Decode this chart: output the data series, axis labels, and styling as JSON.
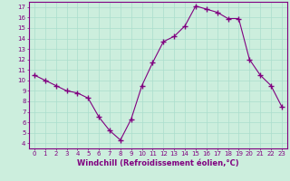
{
  "x": [
    0,
    1,
    2,
    3,
    4,
    5,
    6,
    7,
    8,
    9,
    10,
    11,
    12,
    13,
    14,
    15,
    16,
    17,
    18,
    19,
    20,
    21,
    22,
    23
  ],
  "y": [
    10.5,
    10.0,
    9.5,
    9.0,
    8.8,
    8.3,
    6.5,
    5.2,
    4.3,
    6.3,
    9.5,
    11.7,
    13.7,
    14.2,
    15.2,
    17.1,
    16.8,
    16.5,
    15.9,
    15.9,
    12.0,
    10.5,
    9.5,
    7.5
  ],
  "line_color": "#800080",
  "marker": "+",
  "marker_size": 4,
  "bg_color": "#cceedd",
  "grid_color": "#aaddcc",
  "xlabel": "Windchill (Refroidissement éolien,°C)",
  "xlim": [
    -0.5,
    23.5
  ],
  "ylim": [
    3.5,
    17.5
  ],
  "yticks": [
    4,
    5,
    6,
    7,
    8,
    9,
    10,
    11,
    12,
    13,
    14,
    15,
    16,
    17
  ],
  "xticks": [
    0,
    1,
    2,
    3,
    4,
    5,
    6,
    7,
    8,
    9,
    10,
    11,
    12,
    13,
    14,
    15,
    16,
    17,
    18,
    19,
    20,
    21,
    22,
    23
  ],
  "tick_fontsize": 5.0,
  "label_fontsize": 6.0,
  "axis_color": "#800080",
  "tick_color": "#800080",
  "label_color": "#800080"
}
